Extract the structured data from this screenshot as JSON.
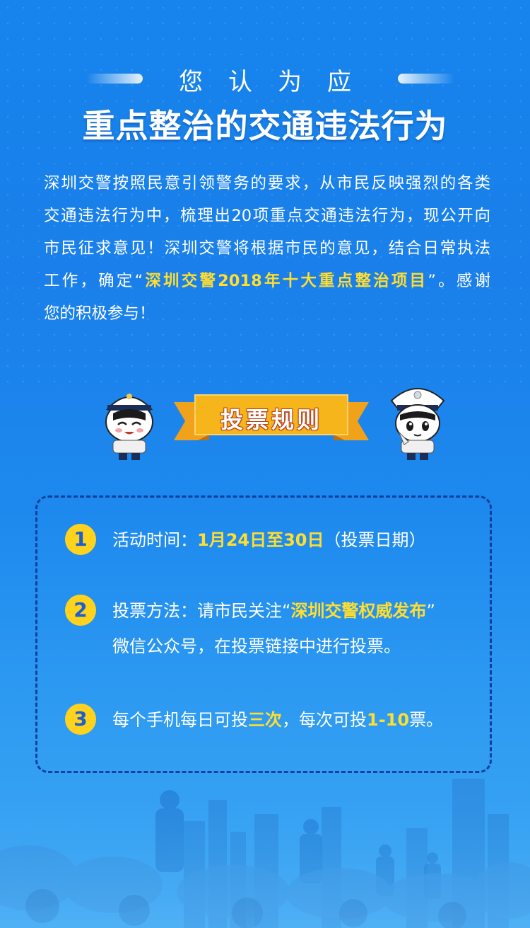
{
  "header": {
    "subtitle": "您认为应",
    "title": "重点整治的交通违法行为"
  },
  "intro": {
    "line1": "深圳交警按照民意引领警务的要求，从市民反映强烈的各类",
    "line2": "交通违法行为中，梳理出20项重点交通违法行为，现公开向",
    "line3": "市民征求意见！深圳交警将根据市民的意见，结合日常执法",
    "line4_pre": "工作，确定“",
    "line4_hl": "深圳交警2018年十大重点整治项目",
    "line4_post": "”。感谢",
    "line5": "您的积极参与！"
  },
  "ribbon": {
    "label": "投票规则"
  },
  "rules": [
    {
      "num": "1",
      "pre": "活动时间：",
      "hl": "1月24日至30日",
      "post": "（投票日期）"
    },
    {
      "num": "2",
      "pre": "投票方法：请市民关注“",
      "hl": "深圳交警权威发布",
      "post": "”",
      "line2": "微信公众号，在投票链接中进行投票。"
    },
    {
      "num": "3",
      "pre": "每个手机每日可投",
      "hl": "三次",
      "mid": "，每次可投",
      "hl2": "1-10",
      "post": "票。"
    }
  ],
  "colors": {
    "background": "#1a7fea",
    "highlight": "#ffde2f",
    "badge": "#ffd21e",
    "border": "#0e3f9e",
    "ribbon": "#f6b51b"
  },
  "icons": [
    "traffic-police-mascot-left",
    "traffic-police-mascot-right",
    "ribbon-banner",
    "city-skyline-illustration"
  ]
}
